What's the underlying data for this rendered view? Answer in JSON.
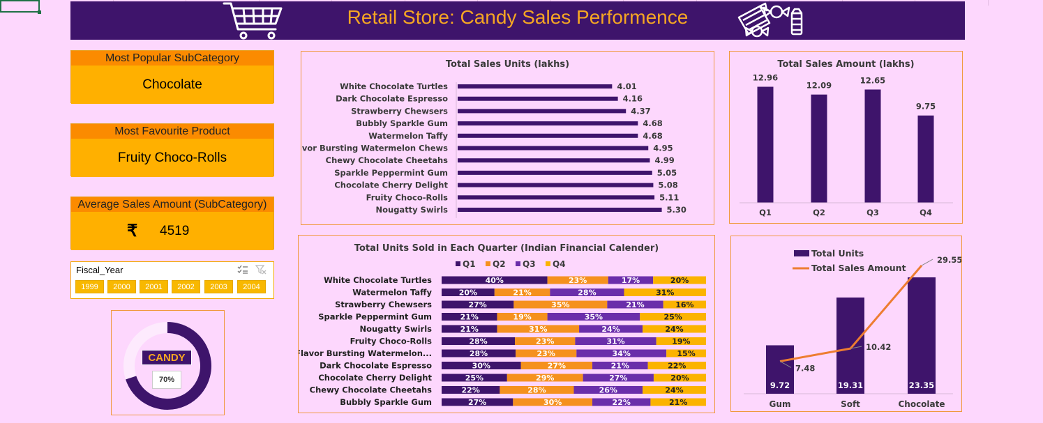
{
  "title": "Retail Store: Candy Sales Performence",
  "cards": [
    {
      "label": "Most Popular SubCategory",
      "value": "Chocolate"
    },
    {
      "label": "Most Favourite Product",
      "value": "Fruity Choco-Rolls"
    },
    {
      "label": "Average Sales Amount (SubCategory)",
      "currency": "₹",
      "value": "4519"
    }
  ],
  "slicer": {
    "title": "Fiscal_Year",
    "items": [
      "1999",
      "2000",
      "2001",
      "2002",
      "2003",
      "2004"
    ]
  },
  "donut": {
    "label": "CANDY",
    "percent_text": "70%",
    "percent": 70
  },
  "colors": {
    "purple": "#3e146b",
    "purple_mid": "#6a2eaa",
    "orange": "#f5911e",
    "amber": "#fbb300",
    "line": "#ed7d31"
  },
  "chart_data": [
    {
      "type": "bar",
      "orientation": "horizontal",
      "title": "Total Sales Units (lakhs)",
      "categories": [
        "White Chocolate Turtles",
        "Dark Chocolate Espresso",
        "Strawberry Chewsers",
        "Bubbly Sparkle Gum",
        "Watermelon Taffy",
        "Flavor Bursting Watermelon Chews",
        "Chewy Chocolate Cheetahs",
        "Sparkle Peppermint Gum",
        "Chocolate Cherry Delight",
        "Fruity Choco-Rolls",
        "Nougatty Swirls"
      ],
      "values": [
        4.01,
        4.16,
        4.37,
        4.68,
        4.68,
        4.95,
        4.99,
        5.05,
        5.08,
        5.11,
        5.3
      ],
      "labels": [
        "4.01",
        "4.16",
        "4.37",
        "4.68",
        "4.68",
        "4.95",
        "4.99",
        "5.05",
        "5.08",
        "5.11",
        "5.30"
      ]
    },
    {
      "type": "bar",
      "title": "Total Sales Amount (lakhs)",
      "categories": [
        "Q1",
        "Q2",
        "Q3",
        "Q4"
      ],
      "values": [
        12.96,
        12.09,
        12.65,
        9.75
      ],
      "labels": [
        "12.96",
        "12.09",
        "12.65",
        "9.75"
      ]
    },
    {
      "type": "bar",
      "stacked": "percent",
      "orientation": "horizontal",
      "title": "Total Units Sold in Each Quarter (Indian Financial Calender)",
      "categories": [
        "White Chocolate Turtles",
        "Watermelon Taffy",
        "Strawberry Chewsers",
        "Sparkle Peppermint Gum",
        "Nougatty Swirls",
        "Fruity Choco-Rolls",
        "Flavor Bursting Watermelon...",
        "Dark Chocolate Espresso",
        "Chocolate Cherry Delight",
        "Chewy Chocolate Cheetahs",
        "Bubbly Sparkle Gum"
      ],
      "series": [
        {
          "name": "Q1",
          "color": "#3e146b",
          "values": [
            40,
            20,
            27,
            21,
            21,
            28,
            28,
            30,
            25,
            22,
            27
          ]
        },
        {
          "name": "Q2",
          "color": "#f5911e",
          "values": [
            23,
            21,
            35,
            19,
            31,
            23,
            23,
            27,
            29,
            28,
            30
          ]
        },
        {
          "name": "Q3",
          "color": "#6a2eaa",
          "values": [
            17,
            28,
            21,
            35,
            24,
            31,
            34,
            21,
            27,
            26,
            22
          ]
        },
        {
          "name": "Q4",
          "color": "#fbb300",
          "values": [
            20,
            31,
            16,
            25,
            24,
            19,
            15,
            22,
            20,
            24,
            21
          ]
        }
      ],
      "legend": "top"
    },
    {
      "type": "bar",
      "combo": "bar+line",
      "categories": [
        "Gum",
        "Soft",
        "Chocolate"
      ],
      "series": [
        {
          "name": "Total Units",
          "type": "bar",
          "color": "#3e146b",
          "values": [
            9.72,
            19.31,
            23.35
          ],
          "labels": [
            "9.72",
            "19.31",
            "23.35"
          ]
        },
        {
          "name": "Total Sales Amount",
          "type": "line",
          "color": "#ed7d31",
          "values": [
            7.48,
            10.42,
            29.55
          ],
          "labels": [
            "7.48",
            "10.42",
            "29.55"
          ]
        }
      ],
      "legend": "top-left"
    }
  ]
}
